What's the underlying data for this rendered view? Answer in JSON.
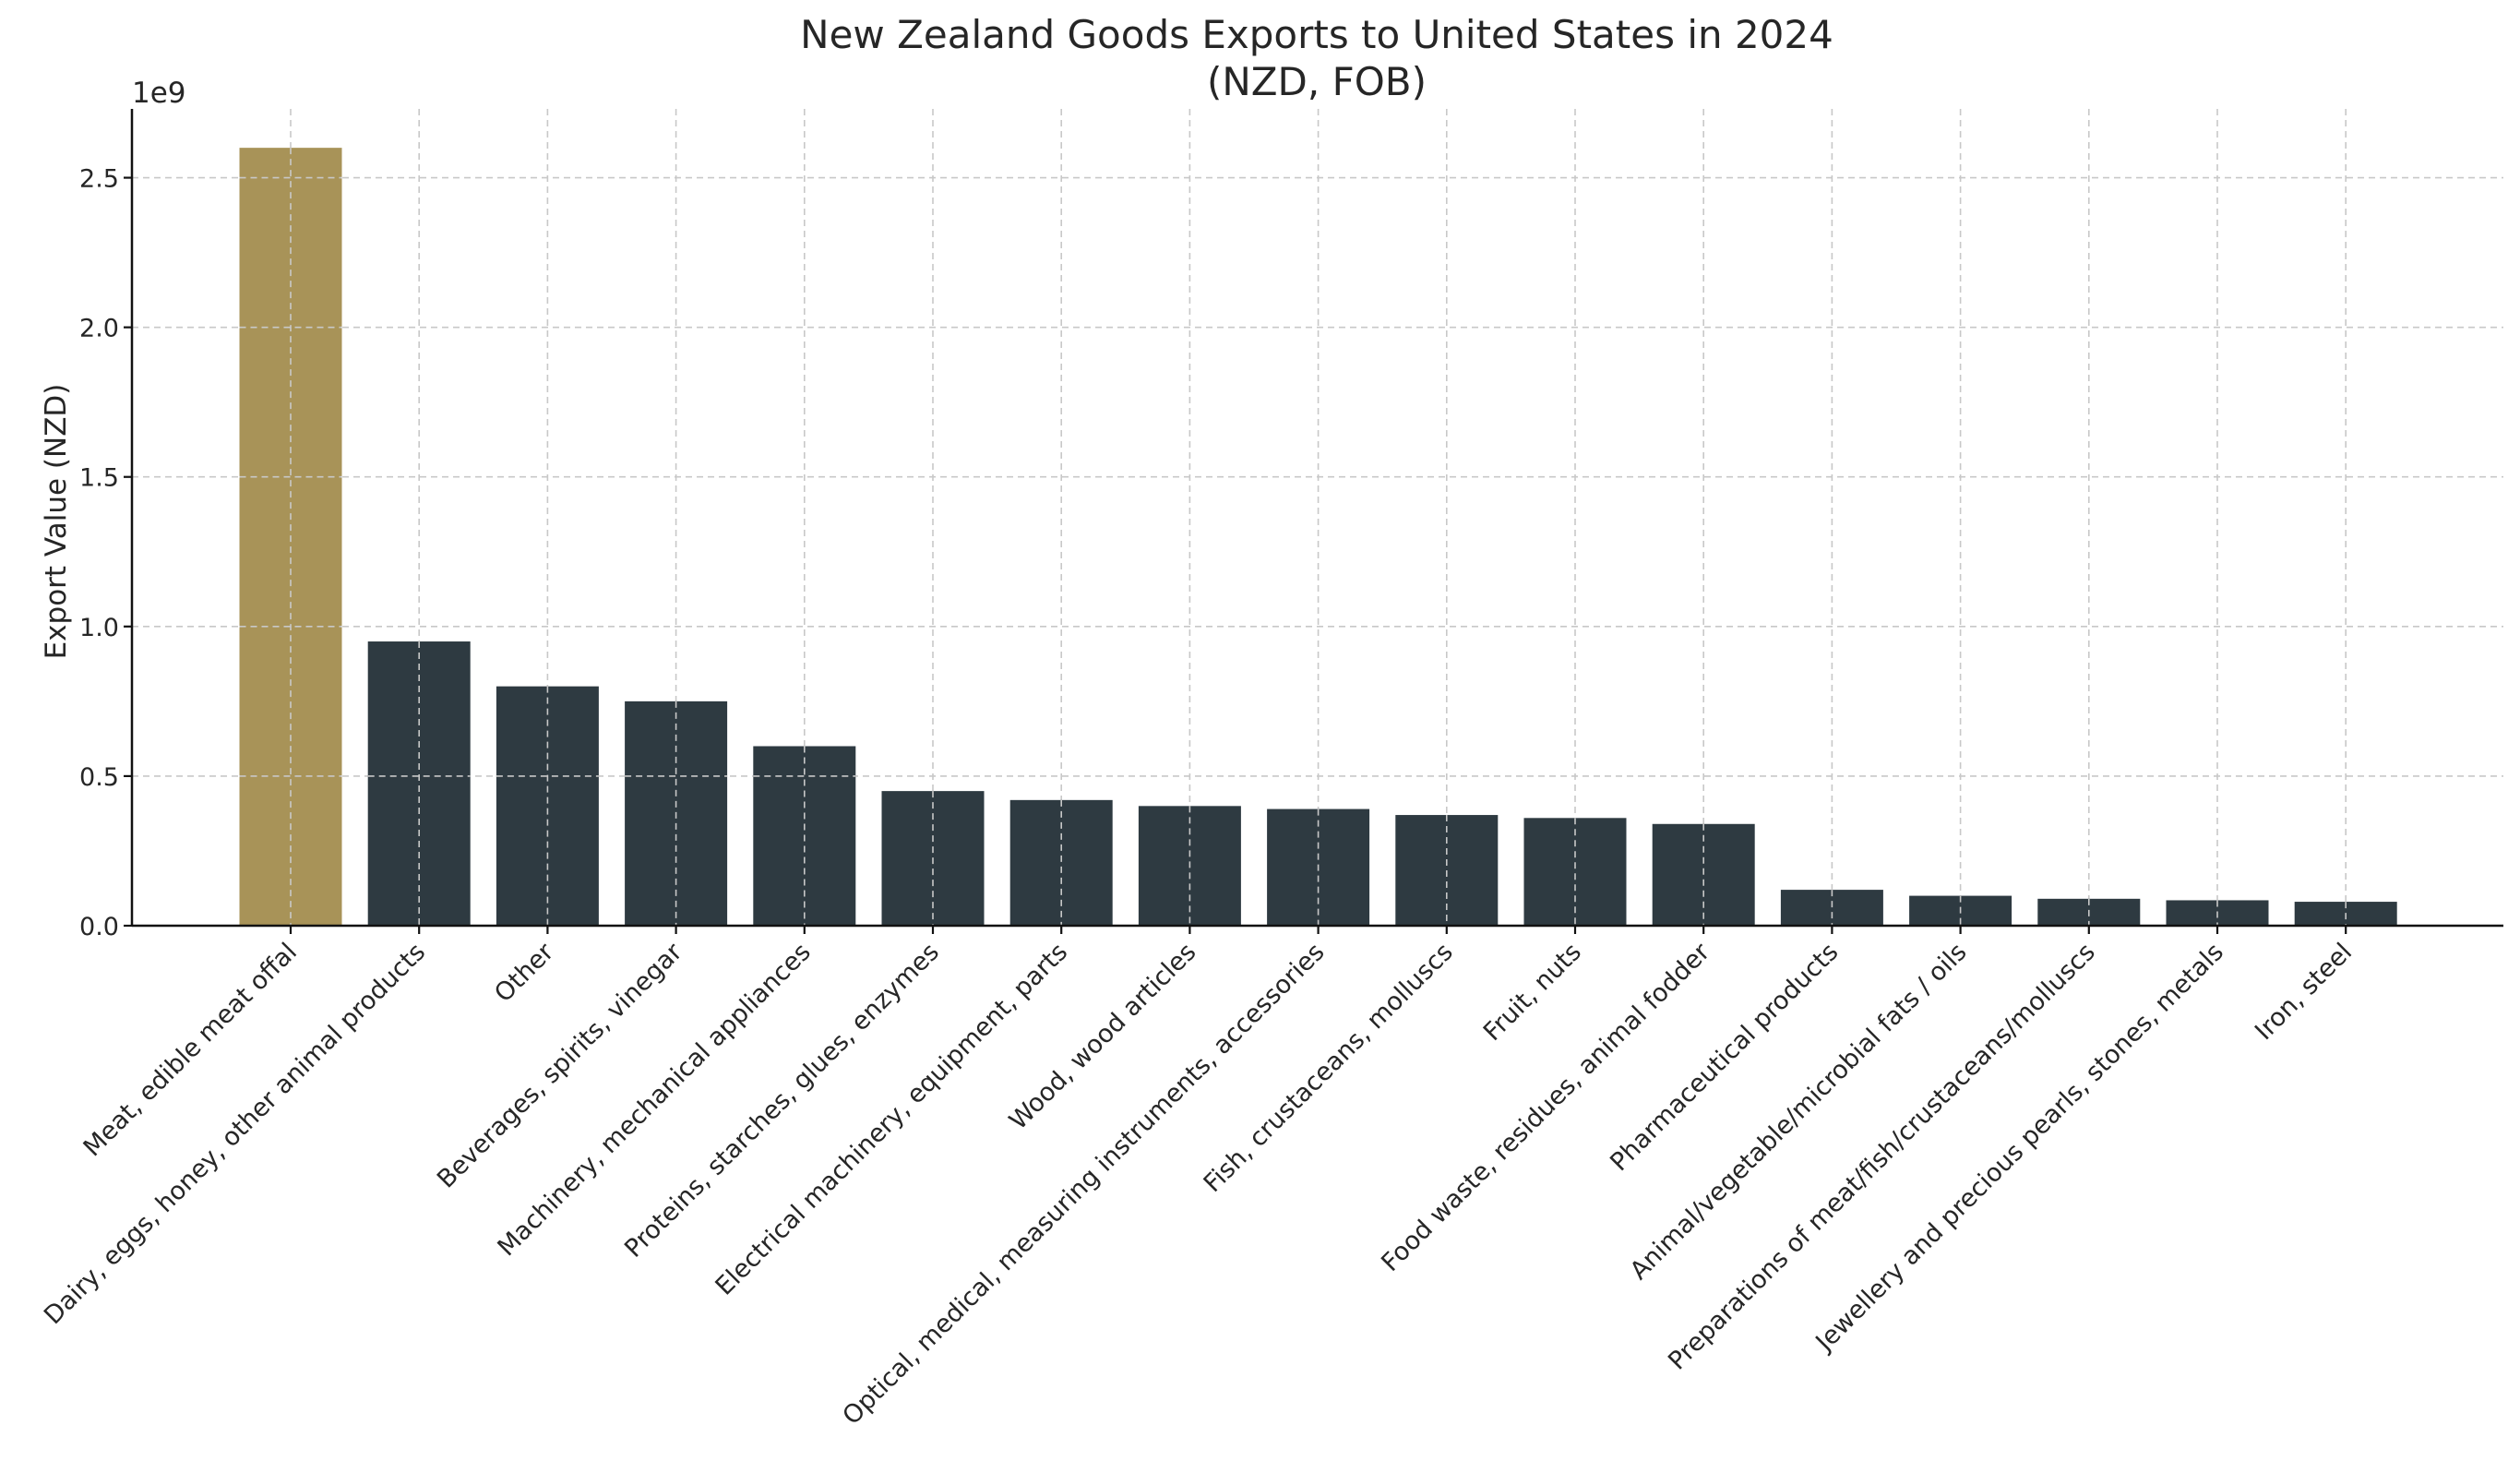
{
  "chart_data": {
    "type": "bar",
    "title": "New Zealand Goods Exports to United States in 2024",
    "subtitle": "(NZD, FOB)",
    "xlabel": "",
    "ylabel": "Export Value (NZD)",
    "y_offset_label": "1e9",
    "ylim": [
      0,
      2730000000
    ],
    "yticks": [
      0,
      500000000,
      1000000000,
      1500000000,
      2000000000,
      2500000000
    ],
    "ytick_labels": [
      "0.0",
      "0.5",
      "1.0",
      "1.5",
      "2.0",
      "2.5"
    ],
    "grid": true,
    "colors": {
      "highlight": "#a89358",
      "default": "#2e3a41"
    },
    "highlight_index": 0,
    "categories": [
      "Meat, edible meat offal",
      "Dairy, eggs, honey, other animal products",
      "Other",
      "Beverages, spirits, vinegar",
      "Machinery, mechanical appliances",
      "Proteins, starches, glues, enzymes",
      "Electrical machinery, equipment, parts",
      "Wood, wood articles",
      "Optical, medical, measuring instruments, accessories",
      "Fish, crustaceans, molluscs",
      "Fruit, nuts",
      "Food waste, residues, animal fodder",
      "Pharmaceutical products",
      "Animal/vegetable/microbial fats / oils",
      "Preparations of meat/fish/crustaceans/molluscs",
      "Jewellery and precious pearls, stones, metals",
      "Iron, steel"
    ],
    "values": [
      2600000000,
      950000000,
      800000000,
      750000000,
      600000000,
      450000000,
      420000000,
      400000000,
      390000000,
      370000000,
      360000000,
      340000000,
      120000000,
      100000000,
      90000000,
      85000000,
      80000000
    ]
  }
}
